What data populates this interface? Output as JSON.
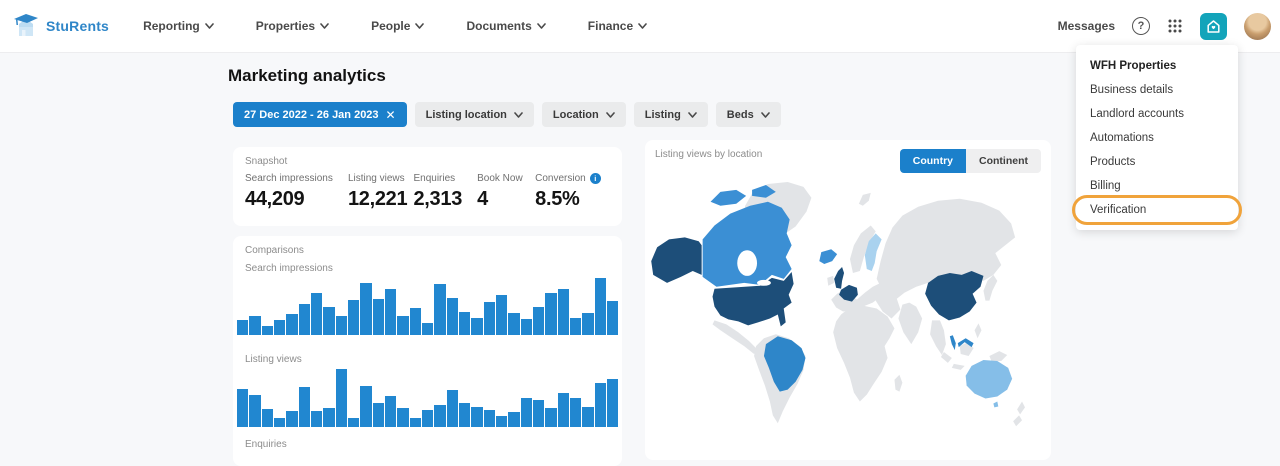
{
  "brand": {
    "name": "StuRents",
    "color": "#2f86c8"
  },
  "header": {
    "nav": [
      {
        "label": "Reporting"
      },
      {
        "label": "Properties"
      },
      {
        "label": "People"
      },
      {
        "label": "Documents"
      },
      {
        "label": "Finance"
      }
    ],
    "right": {
      "messages_label": "Messages"
    }
  },
  "account_menu": {
    "title": "WFH Properties",
    "items": [
      "Business details",
      "Landlord accounts",
      "Automations",
      "Products",
      "Billing",
      "Verification"
    ],
    "highlighted_item": "Verification",
    "highlight_color": "#f0a33b"
  },
  "page": {
    "title": "Marketing analytics"
  },
  "filters": {
    "date_range": "27 Dec 2022 - 26 Jan 2023",
    "dropdowns": [
      "Listing location",
      "Location",
      "Listing",
      "Beds"
    ]
  },
  "snapshot": {
    "label": "Snapshot",
    "metrics": [
      {
        "label": "Search impressions",
        "value": "44,209",
        "info": false
      },
      {
        "label": "Listing views",
        "value": "12,221",
        "info": false
      },
      {
        "label": "Enquiries",
        "value": "2,313",
        "info": false
      },
      {
        "label": "Book Now",
        "value": "4",
        "info": false
      },
      {
        "label": "Conversion",
        "value": "8.5%",
        "info": true
      }
    ]
  },
  "comparisons": {
    "label": "Comparisons",
    "sections": [
      "Search impressions",
      "Listing views",
      "Enquiries"
    ]
  },
  "map_card": {
    "label": "Listing views by location",
    "toggle": {
      "options": [
        "Country",
        "Continent"
      ],
      "selected": "Country"
    }
  },
  "chart_data": [
    {
      "type": "bar",
      "title": "Search impressions",
      "xlabel": "",
      "ylabel": "",
      "x_implied": "daily, 27 Dec 2022 - 26 Jan 2023 (31 bars, no axis labels shown)",
      "values_relative_pct": [
        26,
        34,
        16,
        26,
        37,
        54,
        73,
        49,
        34,
        62,
        92,
        64,
        80,
        34,
        48,
        21,
        89,
        65,
        41,
        30,
        58,
        70,
        38,
        28,
        49,
        73,
        80,
        30,
        38,
        100,
        59
      ],
      "bar_color": "#2187d0",
      "grid": false,
      "axes_shown": false
    },
    {
      "type": "bar",
      "title": "Listing views",
      "xlabel": "",
      "ylabel": "",
      "x_implied": "daily, 27 Dec 2022 - 26 Jan 2023 (31 bars, no axis labels shown)",
      "values_relative_pct": [
        66,
        55,
        31,
        16,
        28,
        69,
        28,
        32,
        100,
        15,
        71,
        41,
        53,
        32,
        16,
        29,
        38,
        64,
        41,
        35,
        29,
        19,
        26,
        50,
        47,
        32,
        58,
        50,
        34,
        75,
        82
      ],
      "bar_color": "#2187d0",
      "grid": false,
      "axes_shown": false
    },
    {
      "type": "choropleth",
      "title": "Listing views by location",
      "mode": "Country",
      "base_land_color": "#e2e4e7",
      "regions": [
        {
          "name": "canada",
          "shade": "medium",
          "color": "#3b8fd4"
        },
        {
          "name": "united-states",
          "shade": "dark",
          "color": "#1d4e79"
        },
        {
          "name": "alaska-us",
          "shade": "dark",
          "color": "#1d4e79"
        },
        {
          "name": "brazil",
          "shade": "medium",
          "color": "#2e86c9"
        },
        {
          "name": "iceland",
          "shade": "medium",
          "color": "#3b8fd4"
        },
        {
          "name": "united-kingdom",
          "shade": "dark",
          "color": "#1d4e79"
        },
        {
          "name": "france",
          "shade": "dark",
          "color": "#1d4e79"
        },
        {
          "name": "finland",
          "shade": "light",
          "color": "#a9d2ef"
        },
        {
          "name": "china",
          "shade": "dark",
          "color": "#1d4e79"
        },
        {
          "name": "malaysia",
          "shade": "medium",
          "color": "#2e86c9"
        },
        {
          "name": "australia",
          "shade": "light",
          "color": "#85bee8"
        }
      ]
    }
  ]
}
